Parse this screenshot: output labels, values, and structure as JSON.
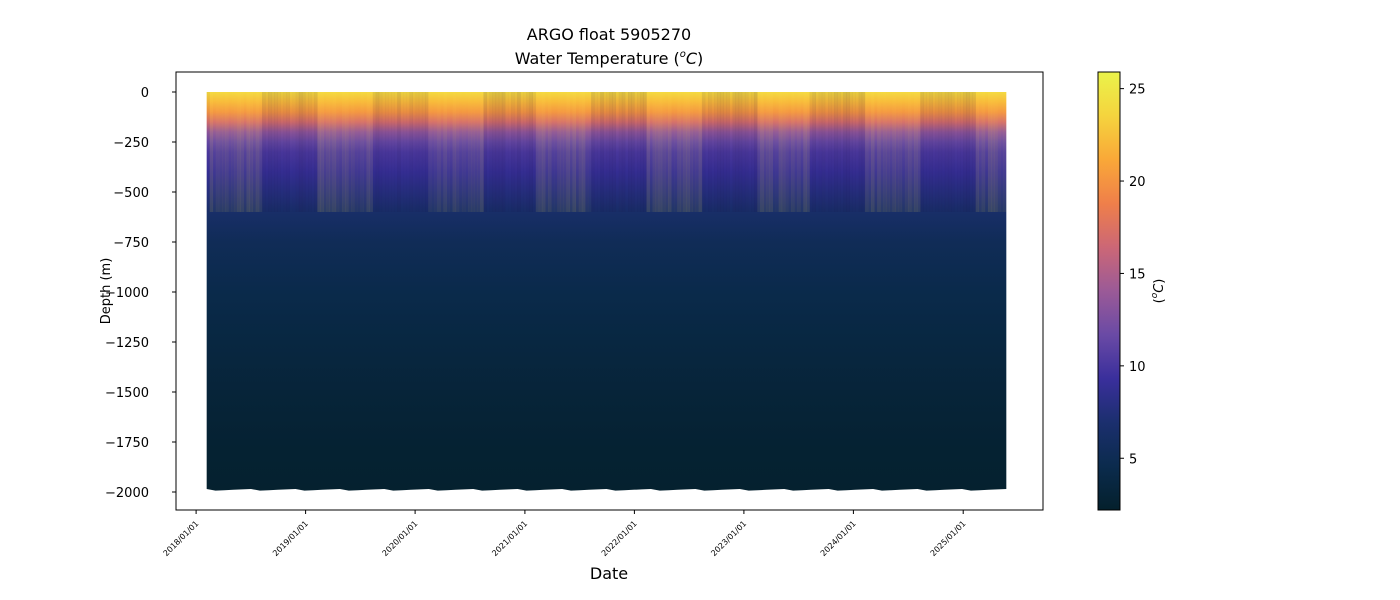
{
  "chart_data": {
    "type": "heatmap",
    "title": "ARGO float 5905270",
    "subtitle_text": "Water Temperature (",
    "subtitle_unit_sup": "o",
    "subtitle_unit": "C",
    "subtitle_close": ")",
    "xlabel": "Date",
    "ylabel": "Depth (m)",
    "colorbar_label_open": "(",
    "colorbar_label_sup": "o",
    "colorbar_label_unit": "C",
    "colorbar_label_close": ")",
    "x_ticks": [
      "2018/01/01",
      "2019/01/01",
      "2020/01/01",
      "2021/01/01",
      "2022/01/01",
      "2023/01/01",
      "2024/01/01",
      "2025/01/01"
    ],
    "y_ticks": [
      0,
      -250,
      -500,
      -750,
      -1000,
      -1250,
      -1500,
      -1750,
      -2000
    ],
    "y_tick_labels": [
      "0",
      "−250",
      "−500",
      "−750",
      "−1000",
      "−1250",
      "−1500",
      "−1750",
      "−2000"
    ],
    "ylim": [
      -2090,
      100
    ],
    "xlim": [
      "2017-10-26",
      "2025-09-24"
    ],
    "data_range": {
      "start": "2018-02-05",
      "end": "2025-05-25",
      "min_depth": 0,
      "max_depth": -1985
    },
    "colorbar_range": [
      2.2,
      25.9
    ],
    "colorbar_ticks": [
      5,
      10,
      15,
      20,
      25
    ],
    "colormap": "thermal",
    "colormap_stops": [
      "#04202c",
      "#0b2b4d",
      "#1b2f6e",
      "#3a2f9c",
      "#6a4aa5",
      "#9b5a97",
      "#cc6776",
      "#ef7f4a",
      "#f9a838",
      "#f5d43e",
      "#eaf34a"
    ],
    "temperature_profile": [
      {
        "depth": 0,
        "temp": 24
      },
      {
        "depth": -50,
        "temp": 22
      },
      {
        "depth": -100,
        "temp": 20
      },
      {
        "depth": -150,
        "temp": 17
      },
      {
        "depth": -200,
        "temp": 13.5
      },
      {
        "depth": -250,
        "temp": 11.5
      },
      {
        "depth": -300,
        "temp": 10.2
      },
      {
        "depth": -400,
        "temp": 9
      },
      {
        "depth": -500,
        "temp": 7.8
      },
      {
        "depth": -600,
        "temp": 6.5
      },
      {
        "depth": -750,
        "temp": 5.3
      },
      {
        "depth": -1000,
        "temp": 4.4
      },
      {
        "depth": -1250,
        "temp": 3.7
      },
      {
        "depth": -1500,
        "temp": 3.1
      },
      {
        "depth": -1750,
        "temp": 2.7
      },
      {
        "depth": -2000,
        "temp": 2.4
      }
    ],
    "grid": false
  }
}
